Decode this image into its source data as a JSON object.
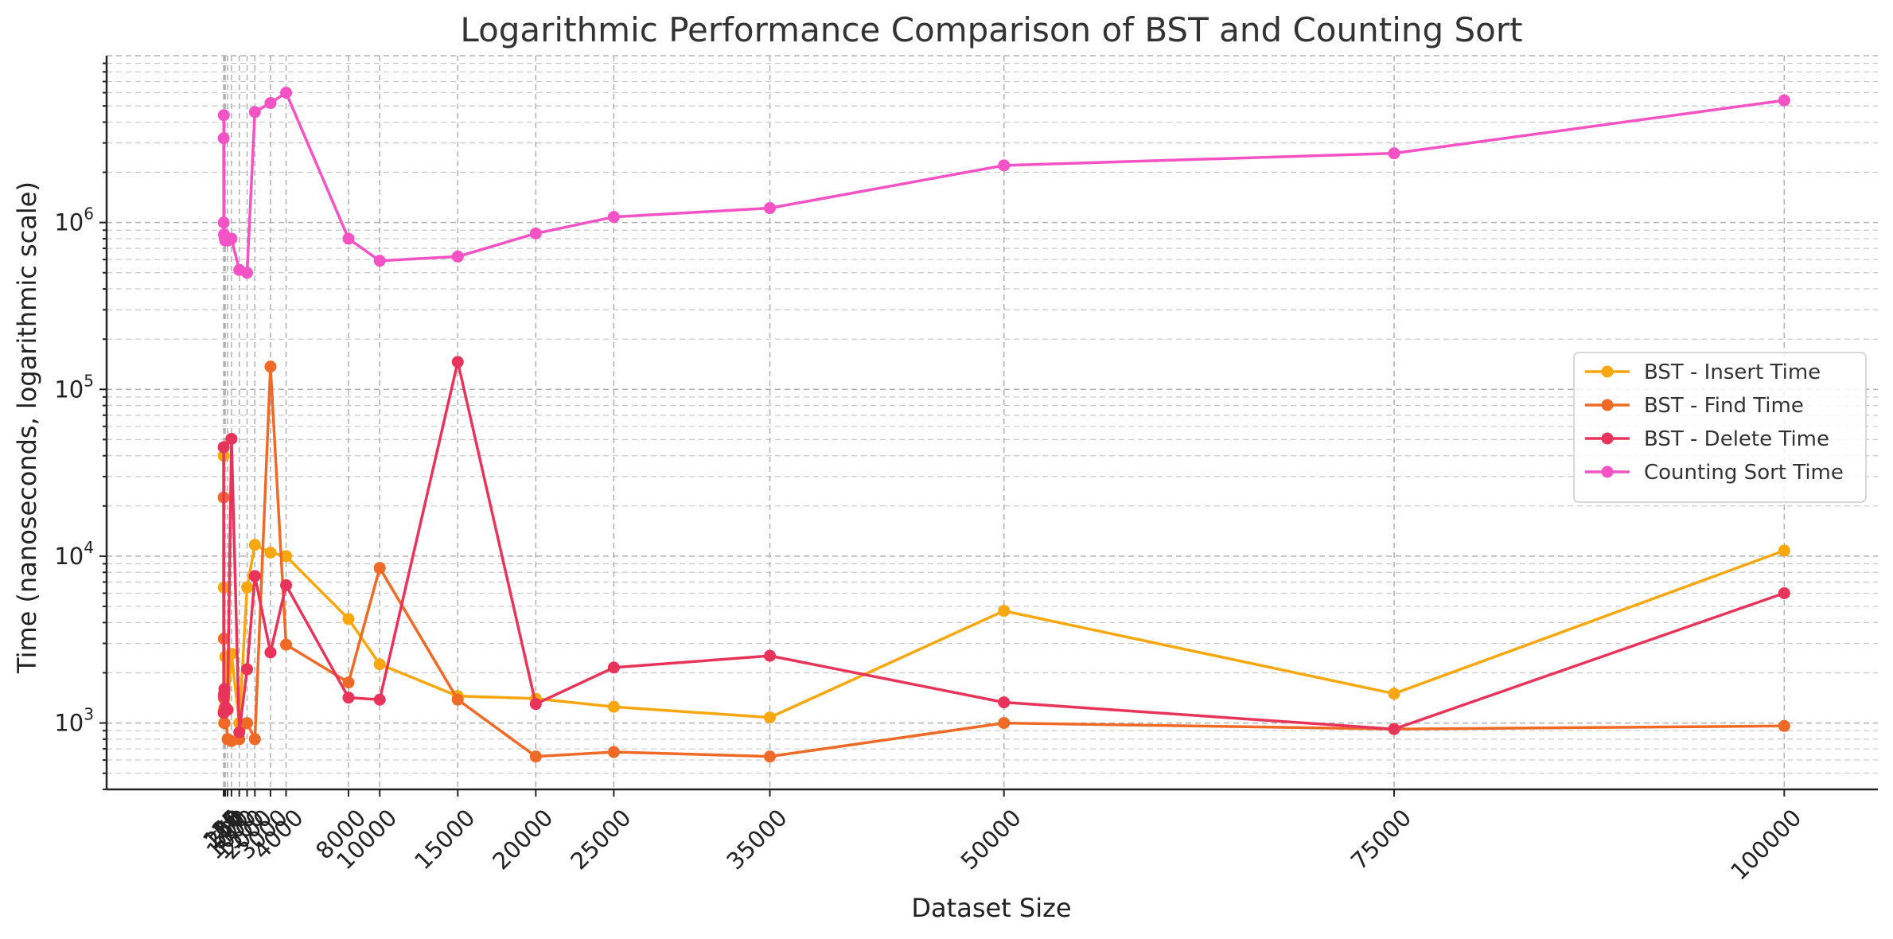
{
  "chart_data": {
    "type": "line",
    "title": "Logarithmic Performance Comparison of BST and Counting Sort",
    "xlabel": "Dataset Size",
    "ylabel": "Time (nanoseconds, logarithmic scale)",
    "yscale": "log",
    "grid": true,
    "legend_position": "center-right",
    "xlim": [
      -7500,
      106000
    ],
    "ylim": [
      400,
      10000000
    ],
    "x_ticks": [
      "1",
      "5",
      "10",
      "25",
      "50",
      "100",
      "250",
      "500",
      "1000",
      "1500",
      "2000",
      "3000",
      "4000",
      "8000",
      "10000",
      "15000",
      "20000",
      "25000",
      "35000",
      "50000",
      "75000",
      "100000"
    ],
    "y_ticks": [
      {
        "value": 1000,
        "base": "10",
        "exp": "3"
      },
      {
        "value": 10000,
        "base": "10",
        "exp": "4"
      },
      {
        "value": 100000,
        "base": "10",
        "exp": "5"
      },
      {
        "value": 1000000,
        "base": "10",
        "exp": "6"
      }
    ],
    "x": [
      1,
      5,
      10,
      25,
      50,
      100,
      250,
      500,
      1000,
      1500,
      2000,
      3000,
      4000,
      8000,
      10000,
      15000,
      20000,
      25000,
      35000,
      50000,
      75000,
      100000
    ],
    "series": [
      {
        "name": "BST - Insert Time",
        "color": "#f9a70e",
        "values": [
          40000,
          1200,
          6500,
          1000,
          1200,
          2500,
          1200,
          2600,
          1000,
          6500,
          11700,
          10500,
          10000,
          4200,
          2250,
          1450,
          1400,
          1250,
          1080,
          4700,
          1500,
          10800
        ]
      },
      {
        "name": "BST - Find Time",
        "color": "#ef6a26",
        "values": [
          22500,
          1150,
          3200,
          1400,
          1000,
          1200,
          800,
          780,
          800,
          1000,
          800,
          137000,
          2950,
          1750,
          8500,
          1380,
          630,
          670,
          630,
          1000,
          920,
          960
        ]
      },
      {
        "name": "BST - Delete Time",
        "color": "#e8345a",
        "values": [
          45000,
          1150,
          1450,
          1500,
          1600,
          1250,
          1200,
          50500,
          880,
          2100,
          7600,
          2650,
          6700,
          1420,
          1380,
          146000,
          1300,
          2150,
          2530,
          1330,
          920,
          6000
        ]
      },
      {
        "name": "Counting Sort Time",
        "color": "#f452c5",
        "values": [
          3200000,
          1000000,
          4400000,
          850000,
          820000,
          780000,
          780000,
          800000,
          520000,
          500000,
          4600000,
          5200000,
          6000000,
          800000,
          590000,
          625000,
          860000,
          1080000,
          1220000,
          2200000,
          2600000,
          5400000
        ]
      }
    ]
  }
}
